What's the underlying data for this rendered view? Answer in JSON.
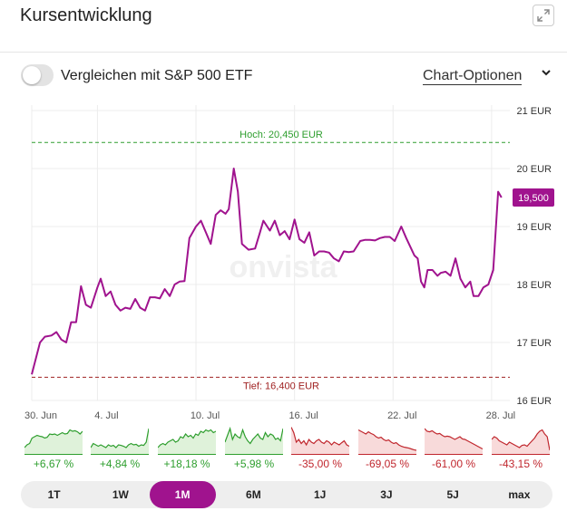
{
  "header": {
    "title": "Kursentwicklung",
    "expand_icon": "expand-icon"
  },
  "compare": {
    "label": "Vergleichen mit S&P 500 ETF",
    "enabled": false
  },
  "chart_options": {
    "label": "Chart-Optionen",
    "icon": "chevron-down-icon"
  },
  "colors": {
    "accent": "#a0138e",
    "high": "#2e9e2e",
    "low": "#a02323",
    "positive": "#2e9e2e",
    "negative": "#c0262d"
  },
  "chart_data": {
    "type": "line",
    "title": "",
    "watermark": "onvista",
    "ylim": [
      16,
      21
    ],
    "y_ticks": [
      {
        "v": 21,
        "label": "21 EUR"
      },
      {
        "v": 20,
        "label": "20 EUR"
      },
      {
        "v": 19,
        "label": "19 EUR"
      },
      {
        "v": 18,
        "label": "18 EUR"
      },
      {
        "v": 17,
        "label": "17 EUR"
      },
      {
        "v": 16,
        "label": "16 EUR"
      }
    ],
    "x_ticks": [
      {
        "x": 0,
        "label": "30. Jun"
      },
      {
        "x": 4,
        "label": "4. Jul"
      },
      {
        "x": 10,
        "label": "10. Jul"
      },
      {
        "x": 16,
        "label": "16. Jul"
      },
      {
        "x": 22,
        "label": "22. Jul"
      },
      {
        "x": 28,
        "label": "28. Jul"
      }
    ],
    "xlim": [
      0,
      29
    ],
    "high": {
      "value": 20.45,
      "label": "Hoch: 20,450 EUR"
    },
    "low": {
      "value": 16.4,
      "label": "Tief: 16,400 EUR"
    },
    "last": {
      "value": 19.5,
      "label": "19,500"
    },
    "grid": true,
    "series": [
      {
        "points": [
          [
            0,
            16.45
          ],
          [
            0.5,
            17.0
          ],
          [
            0.8,
            17.1
          ],
          [
            1.2,
            17.12
          ],
          [
            1.5,
            17.18
          ],
          [
            1.8,
            17.05
          ],
          [
            2.1,
            17.0
          ],
          [
            2.4,
            17.35
          ],
          [
            2.7,
            17.35
          ],
          [
            3.0,
            17.97
          ],
          [
            3.3,
            17.65
          ],
          [
            3.6,
            17.6
          ],
          [
            4.0,
            17.95
          ],
          [
            4.2,
            18.1
          ],
          [
            4.5,
            17.8
          ],
          [
            4.8,
            17.88
          ],
          [
            5.1,
            17.65
          ],
          [
            5.4,
            17.55
          ],
          [
            5.7,
            17.6
          ],
          [
            6.0,
            17.58
          ],
          [
            6.3,
            17.75
          ],
          [
            6.6,
            17.6
          ],
          [
            6.9,
            17.55
          ],
          [
            7.2,
            17.78
          ],
          [
            7.5,
            17.78
          ],
          [
            7.8,
            17.76
          ],
          [
            8.1,
            17.92
          ],
          [
            8.4,
            17.8
          ],
          [
            8.7,
            18.0
          ],
          [
            9.0,
            18.05
          ],
          [
            9.3,
            18.06
          ],
          [
            9.6,
            18.8
          ],
          [
            10.0,
            19.0
          ],
          [
            10.3,
            19.1
          ],
          [
            10.6,
            18.9
          ],
          [
            10.9,
            18.7
          ],
          [
            11.2,
            19.2
          ],
          [
            11.5,
            19.28
          ],
          [
            11.8,
            19.22
          ],
          [
            12.0,
            19.3
          ],
          [
            12.3,
            20.0
          ],
          [
            12.55,
            19.6
          ],
          [
            12.8,
            18.7
          ],
          [
            13.2,
            18.6
          ],
          [
            13.6,
            18.62
          ],
          [
            13.9,
            18.9
          ],
          [
            14.1,
            19.1
          ],
          [
            14.5,
            18.93
          ],
          [
            14.8,
            19.1
          ],
          [
            15.1,
            18.85
          ],
          [
            15.4,
            18.92
          ],
          [
            15.7,
            18.78
          ],
          [
            16.0,
            19.12
          ],
          [
            16.3,
            18.78
          ],
          [
            16.6,
            18.72
          ],
          [
            16.9,
            18.9
          ],
          [
            17.2,
            18.5
          ],
          [
            17.5,
            18.57
          ],
          [
            17.8,
            18.57
          ],
          [
            18.1,
            18.55
          ],
          [
            18.4,
            18.45
          ],
          [
            18.7,
            18.4
          ],
          [
            19.0,
            18.57
          ],
          [
            19.3,
            18.56
          ],
          [
            19.6,
            18.57
          ],
          [
            20.0,
            18.75
          ],
          [
            20.3,
            18.77
          ],
          [
            20.6,
            18.77
          ],
          [
            20.9,
            18.76
          ],
          [
            21.2,
            18.8
          ],
          [
            21.5,
            18.82
          ],
          [
            21.8,
            18.82
          ],
          [
            22.1,
            18.75
          ],
          [
            22.5,
            19.0
          ],
          [
            22.8,
            18.8
          ],
          [
            23.1,
            18.62
          ],
          [
            23.3,
            18.5
          ],
          [
            23.5,
            18.45
          ],
          [
            23.7,
            18.05
          ],
          [
            23.9,
            17.95
          ],
          [
            24.1,
            18.25
          ],
          [
            24.4,
            18.25
          ],
          [
            24.7,
            18.15
          ],
          [
            24.9,
            18.2
          ],
          [
            25.2,
            18.22
          ],
          [
            25.5,
            18.15
          ],
          [
            25.8,
            18.45
          ],
          [
            26.1,
            18.1
          ],
          [
            26.4,
            17.95
          ],
          [
            26.7,
            18.05
          ],
          [
            26.9,
            17.8
          ],
          [
            27.2,
            17.8
          ],
          [
            27.5,
            17.95
          ],
          [
            27.8,
            18.0
          ],
          [
            28.1,
            18.25
          ],
          [
            28.4,
            19.6
          ],
          [
            28.6,
            19.5
          ]
        ]
      }
    ]
  },
  "mini_charts": [
    {
      "pct": "+6,67 %",
      "trend": "up",
      "values": [
        0.2,
        0.3,
        0.35,
        0.55,
        0.6,
        0.65,
        0.62,
        0.6,
        0.55,
        0.58,
        0.7,
        0.68,
        0.7,
        0.65,
        0.7,
        0.75,
        0.7,
        0.72,
        0.85,
        0.8,
        0.82,
        0.78,
        0.7,
        0.8
      ]
    },
    {
      "pct": "+4,84 %",
      "trend": "up",
      "values": [
        0.2,
        0.35,
        0.3,
        0.25,
        0.3,
        0.25,
        0.2,
        0.3,
        0.25,
        0.28,
        0.2,
        0.3,
        0.28,
        0.25,
        0.2,
        0.3,
        0.35,
        0.3,
        0.32,
        0.25,
        0.3,
        0.28,
        0.4,
        0.9
      ]
    },
    {
      "pct": "+18,18 %",
      "trend": "up",
      "values": [
        0.2,
        0.3,
        0.35,
        0.3,
        0.4,
        0.45,
        0.5,
        0.4,
        0.45,
        0.6,
        0.55,
        0.7,
        0.6,
        0.65,
        0.55,
        0.7,
        0.65,
        0.8,
        0.75,
        0.85,
        0.8,
        0.85,
        0.75,
        0.8
      ]
    },
    {
      "pct": "+5,98 %",
      "trend": "up",
      "values": [
        0.4,
        0.65,
        0.9,
        0.5,
        0.7,
        0.6,
        0.55,
        0.85,
        0.6,
        0.45,
        0.35,
        0.5,
        0.6,
        0.7,
        0.55,
        0.5,
        0.75,
        0.6,
        0.7,
        0.65,
        0.5,
        0.55,
        0.45,
        0.9
      ]
    },
    {
      "pct": "-35,00 %",
      "trend": "down",
      "values": [
        0.95,
        0.75,
        0.4,
        0.5,
        0.35,
        0.45,
        0.3,
        0.5,
        0.4,
        0.35,
        0.45,
        0.5,
        0.4,
        0.35,
        0.45,
        0.4,
        0.3,
        0.4,
        0.35,
        0.3,
        0.38,
        0.45,
        0.3,
        0.25
      ]
    },
    {
      "pct": "-69,05 %",
      "trend": "down",
      "values": [
        0.85,
        0.8,
        0.75,
        0.7,
        0.78,
        0.72,
        0.68,
        0.6,
        0.55,
        0.58,
        0.5,
        0.45,
        0.48,
        0.4,
        0.35,
        0.38,
        0.3,
        0.25,
        0.22,
        0.2,
        0.18,
        0.15,
        0.12,
        0.1
      ]
    },
    {
      "pct": "-61,00 %",
      "trend": "down",
      "values": [
        0.9,
        0.8,
        0.78,
        0.82,
        0.75,
        0.7,
        0.72,
        0.65,
        0.6,
        0.62,
        0.6,
        0.55,
        0.5,
        0.55,
        0.6,
        0.52,
        0.5,
        0.45,
        0.4,
        0.35,
        0.3,
        0.25,
        0.2,
        0.15
      ]
    },
    {
      "pct": "-43,15 %",
      "trend": "down",
      "values": [
        0.5,
        0.6,
        0.55,
        0.45,
        0.4,
        0.35,
        0.3,
        0.4,
        0.35,
        0.3,
        0.25,
        0.2,
        0.28,
        0.3,
        0.25,
        0.35,
        0.45,
        0.55,
        0.7,
        0.8,
        0.85,
        0.7,
        0.6,
        0.1
      ]
    }
  ],
  "tabs": [
    {
      "label": "1T",
      "active": false
    },
    {
      "label": "1W",
      "active": false
    },
    {
      "label": "1M",
      "active": true
    },
    {
      "label": "6M",
      "active": false
    },
    {
      "label": "1J",
      "active": false
    },
    {
      "label": "3J",
      "active": false
    },
    {
      "label": "5J",
      "active": false
    },
    {
      "label": "max",
      "active": false
    }
  ]
}
